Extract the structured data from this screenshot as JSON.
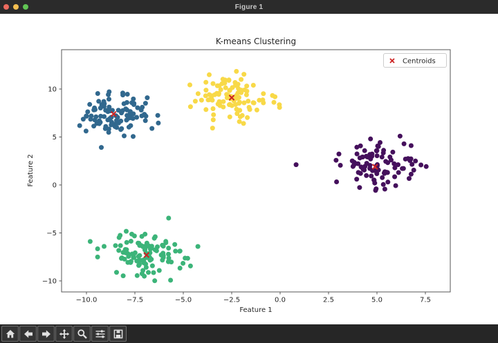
{
  "window": {
    "title": "Figure 1",
    "traffic_lights": {
      "close_color": "#ec6a5e",
      "minimize_color": "#f4bf50",
      "zoom_color": "#61c554"
    }
  },
  "chart_data": {
    "type": "scatter",
    "title": "K-means Clustering",
    "xlabel": "Feature 1",
    "ylabel": "Feature 2",
    "xlim": [
      -11.3,
      8.8
    ],
    "ylim": [
      -11.2,
      14.1
    ],
    "xticks": [
      -10.0,
      -7.5,
      -5.0,
      -2.5,
      0.0,
      2.5,
      5.0,
      7.5
    ],
    "yticks": [
      -10,
      -5,
      0,
      5,
      10
    ],
    "grid": false,
    "background": "#ffffff",
    "spine_color": "#555555",
    "marker_diameter_px": 7,
    "clusters": [
      {
        "name": "cluster-blue",
        "color": "#31688e",
        "center": [
          -8.6,
          7.4
        ],
        "std": 0.95,
        "count": 100
      },
      {
        "name": "cluster-yellow",
        "color": "#f8d948",
        "center": [
          -2.5,
          9.1
        ],
        "std": 1.05,
        "count": 105
      },
      {
        "name": "cluster-purple",
        "color": "#45105c",
        "center": [
          4.9,
          1.9
        ],
        "std": 1.15,
        "count": 100
      },
      {
        "name": "cluster-green",
        "color": "#3cb479",
        "center": [
          -6.9,
          -7.3
        ],
        "std": 1.05,
        "count": 110
      }
    ],
    "centroids": {
      "marker": "x",
      "color": "#cc2222",
      "points": [
        [
          -8.6,
          7.4
        ],
        [
          -2.5,
          9.1
        ],
        [
          4.9,
          1.9
        ],
        [
          -6.9,
          -7.3
        ]
      ]
    },
    "legend": {
      "position": "upper right",
      "entries": [
        {
          "label": "Centroids",
          "marker": "x",
          "marker_color": "#cc2222"
        }
      ]
    }
  },
  "toolbar": {
    "buttons": [
      {
        "name": "home",
        "icon": "home-icon",
        "tooltip": "Home"
      },
      {
        "name": "back",
        "icon": "arrow-left-icon",
        "tooltip": "Back"
      },
      {
        "name": "forward",
        "icon": "arrow-right-icon",
        "tooltip": "Forward"
      },
      {
        "name": "pan",
        "icon": "move-icon",
        "tooltip": "Pan"
      },
      {
        "name": "zoom",
        "icon": "magnifier-icon",
        "tooltip": "Zoom"
      },
      {
        "name": "subplots",
        "icon": "sliders-icon",
        "tooltip": "Configure subplots"
      },
      {
        "name": "save",
        "icon": "floppy-icon",
        "tooltip": "Save"
      }
    ]
  }
}
